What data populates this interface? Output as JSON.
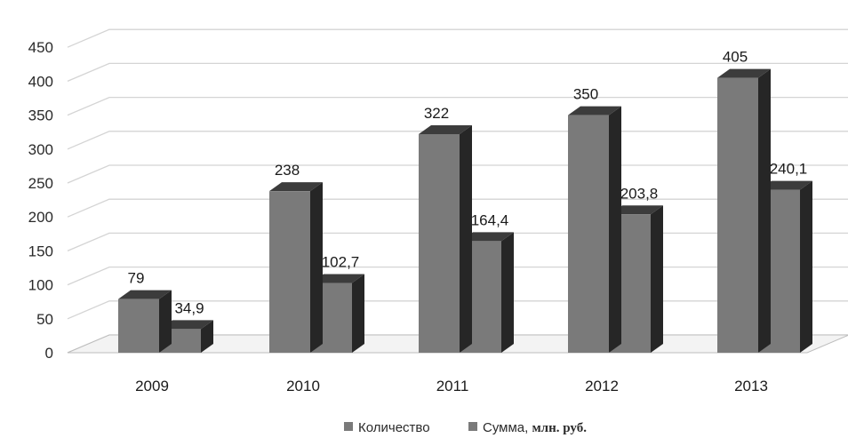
{
  "chart_data": {
    "type": "bar",
    "title": "",
    "xlabel": "",
    "ylabel": "",
    "categories": [
      "2009",
      "2010",
      "2011",
      "2012",
      "2013"
    ],
    "series": [
      {
        "name": "Количество",
        "values": [
          79,
          238,
          322,
          350,
          405
        ],
        "labels": [
          "79",
          "238",
          "322",
          "350",
          "405"
        ]
      },
      {
        "name": "Сумма, млн. руб.",
        "values": [
          34.9,
          102.7,
          164.4,
          203.8,
          240.1
        ],
        "labels": [
          "34,9",
          "102,7",
          "164,4",
          "203,8",
          "240,1"
        ]
      }
    ],
    "ylim": [
      0,
      450
    ],
    "yticks": [
      "0",
      "50",
      "100",
      "150",
      "200",
      "250",
      "300",
      "350",
      "400",
      "450"
    ],
    "grid": true,
    "legend": "bottom",
    "style": "3d",
    "colors": {
      "front": "#7a7a7a",
      "top": "#3c3c3c",
      "side": "#262626",
      "grid": "#d4d4d4",
      "floor": "#bdbdbd"
    }
  }
}
